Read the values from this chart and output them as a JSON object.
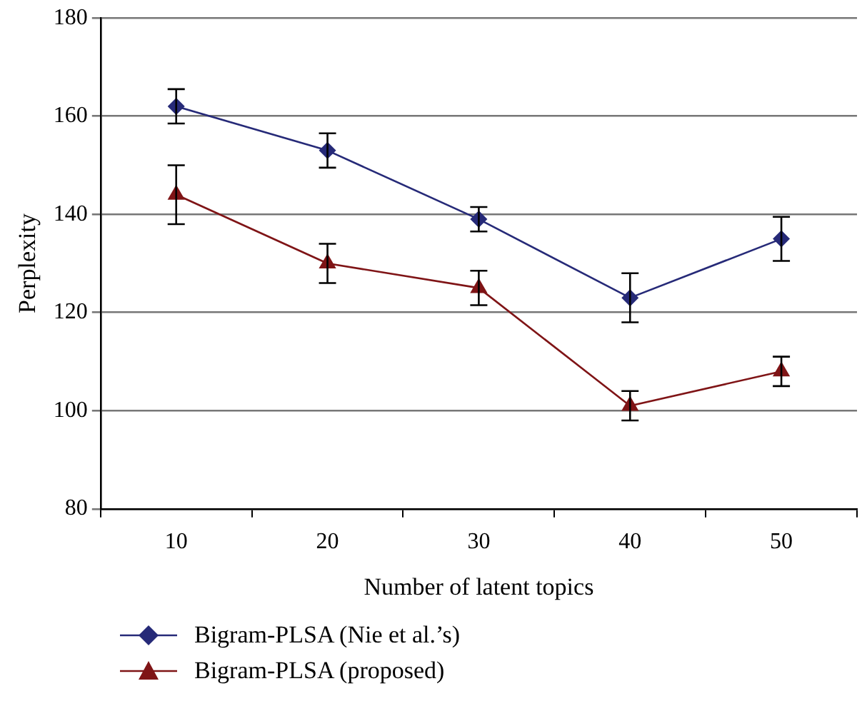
{
  "chart_data": {
    "type": "line",
    "xlabel": "Number of latent topics",
    "ylabel": "Perplexity",
    "categories": [
      "10",
      "20",
      "30",
      "40",
      "50"
    ],
    "series": [
      {
        "name": "Bigram-PLSA (Nie et al.’s)",
        "color": "#262a78",
        "marker": "diamond",
        "values": [
          162,
          153,
          139,
          123,
          135
        ],
        "errors": [
          3.5,
          3.5,
          2.5,
          5,
          4.5
        ]
      },
      {
        "name": "Bigram-PLSA (proposed)",
        "color": "#7f1416",
        "marker": "triangle",
        "values": [
          144,
          130,
          125,
          101,
          108
        ],
        "errors": [
          6,
          4,
          3.5,
          3,
          3
        ]
      }
    ],
    "ylim": [
      80,
      180
    ],
    "yticks": [
      80,
      100,
      120,
      140,
      160,
      180
    ],
    "grid": "y",
    "legend": "bottom left"
  }
}
